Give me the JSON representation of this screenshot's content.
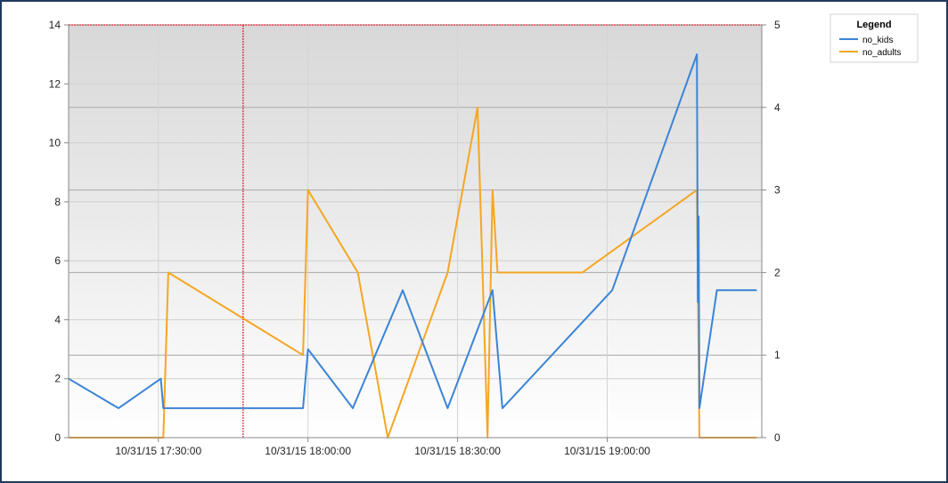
{
  "chart_data": {
    "type": "line",
    "title": "",
    "xlabel": "",
    "ylabel": "",
    "x_ticks": [
      "10/31/15 17:30:00",
      "10/31/15 18:00:00",
      "10/31/15 18:30:00",
      "10/31/15 19:00:00"
    ],
    "xlim": [
      "10/31/15 17:12:00",
      "10/31/15 19:31:00"
    ],
    "ylim": [
      0,
      14
    ],
    "y_ticks": [
      0,
      2,
      4,
      6,
      8,
      10,
      12,
      14
    ],
    "y2lim": [
      0,
      5
    ],
    "y2_ticks": [
      0,
      1,
      2,
      3,
      4,
      5
    ],
    "grid": true,
    "legend": {
      "title": "Legend",
      "position": "top-right"
    },
    "reference_lines": [
      {
        "axis": "y",
        "value": 14,
        "color": "#cc0000",
        "style": "dotted"
      },
      {
        "axis": "x",
        "value": "10/31/15 17:47:00",
        "color": "#cc0000",
        "style": "dotted"
      }
    ],
    "series": [
      {
        "name": "no_kids",
        "color": "#3b84d6",
        "axis": "left",
        "points": [
          [
            "10/31/15 17:12:00",
            2
          ],
          [
            "10/31/15 17:22:00",
            1
          ],
          [
            "10/31/15 17:30:30",
            2
          ],
          [
            "10/31/15 17:31:00",
            1
          ],
          [
            "10/31/15 17:59:00",
            1
          ],
          [
            "10/31/15 18:00:00",
            3
          ],
          [
            "10/31/15 18:09:00",
            1
          ],
          [
            "10/31/15 18:19:00",
            5
          ],
          [
            "10/31/15 18:28:00",
            1
          ],
          [
            "10/31/15 18:37:00",
            5
          ],
          [
            "10/31/15 18:39:00",
            1
          ],
          [
            "10/31/15 19:01:00",
            5
          ],
          [
            "10/31/15 19:18:00",
            13
          ],
          [
            "10/31/15 19:18:10",
            4.6
          ],
          [
            "10/31/15 19:18:20",
            7.5
          ],
          [
            "10/31/15 19:18:30",
            1
          ],
          [
            "10/31/15 19:22:00",
            5
          ],
          [
            "10/31/15 19:30:00",
            5
          ]
        ]
      },
      {
        "name": "no_adults",
        "color": "#f5a623",
        "axis": "right",
        "points": [
          [
            "10/31/15 17:12:00",
            0
          ],
          [
            "10/31/15 17:31:00",
            0
          ],
          [
            "10/31/15 17:32:00",
            2
          ],
          [
            "10/31/15 17:59:00",
            1
          ],
          [
            "10/31/15 18:00:00",
            3
          ],
          [
            "10/31/15 18:10:00",
            2
          ],
          [
            "10/31/15 18:16:00",
            0
          ],
          [
            "10/31/15 18:28:00",
            2
          ],
          [
            "10/31/15 18:34:00",
            4
          ],
          [
            "10/31/15 18:36:00",
            0
          ],
          [
            "10/31/15 18:37:00",
            3
          ],
          [
            "10/31/15 18:38:00",
            2
          ],
          [
            "10/31/15 18:55:00",
            2
          ],
          [
            "10/31/15 19:18:00",
            3
          ],
          [
            "10/31/15 19:18:30",
            0
          ],
          [
            "10/31/15 19:30:00",
            0
          ]
        ]
      }
    ]
  }
}
